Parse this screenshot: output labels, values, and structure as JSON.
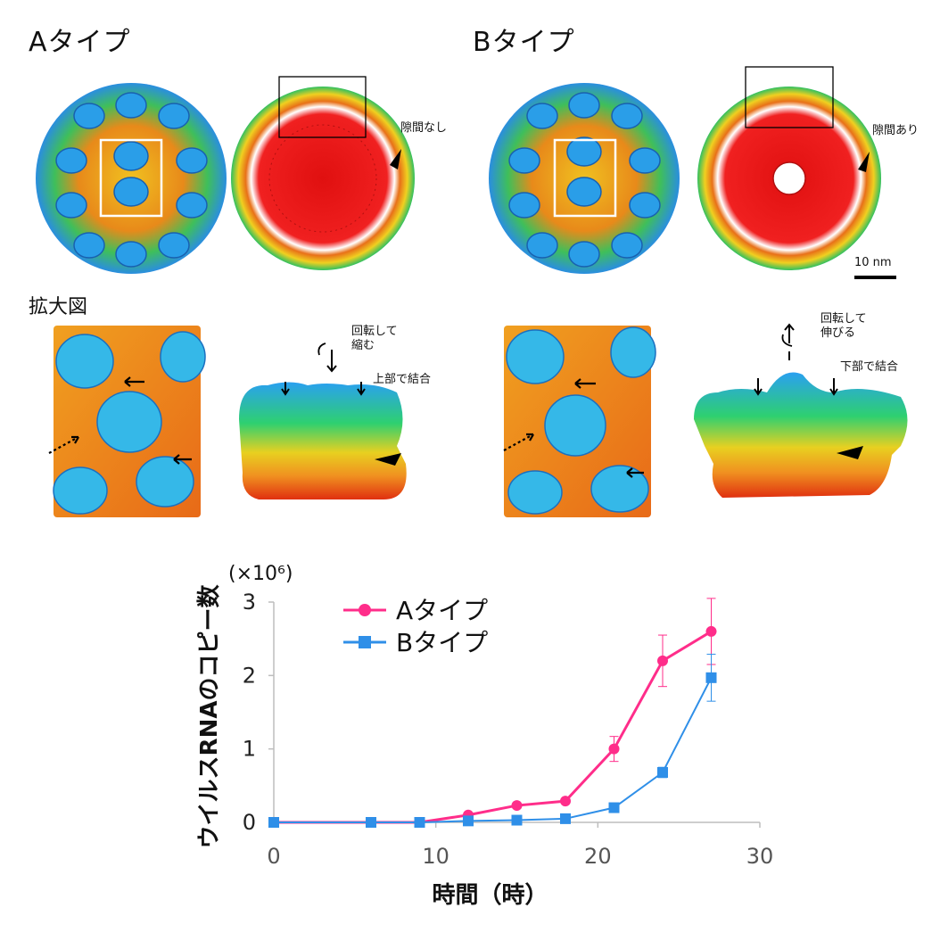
{
  "panels": {
    "a_title": "Aタイプ",
    "b_title": "Bタイプ",
    "a_gap_note": "隙間なし",
    "b_gap_note": "隙間あり",
    "scale_label": "10 nm",
    "zoom_label": "拡大図",
    "a_rotate_note": "回転して\n縮む",
    "b_rotate_note": "回転して\n伸びる",
    "a_bind_note": "上部で結合",
    "b_bind_note": "下部で結合"
  },
  "chart_data": {
    "type": "line",
    "title": "",
    "xlabel": "時間（時）",
    "ylabel": "ウイルスRNAのコピー数",
    "yunit": "(×10⁶)",
    "xlim": [
      0,
      30
    ],
    "ylim": [
      0,
      3
    ],
    "xticks": [
      0,
      10,
      20,
      30
    ],
    "yticks": [
      0,
      1,
      2,
      3
    ],
    "x": [
      0,
      6,
      9,
      12,
      15,
      18,
      21,
      24,
      27
    ],
    "series": [
      {
        "name": "Aタイプ",
        "color": "#ff2d8a",
        "marker": "circle",
        "values": [
          0.0,
          0.0,
          0.0,
          0.1,
          0.23,
          0.29,
          1.0,
          2.2,
          2.6
        ],
        "error": [
          0,
          0,
          0,
          0,
          0,
          0,
          0.17,
          0.35,
          0.45
        ]
      },
      {
        "name": "Bタイプ",
        "color": "#2f8fe8",
        "marker": "square",
        "values": [
          0.0,
          0.0,
          0.0,
          0.02,
          0.03,
          0.05,
          0.2,
          0.68,
          1.97
        ],
        "error": [
          0,
          0,
          0,
          0,
          0,
          0,
          0,
          0.07,
          0.32
        ]
      }
    ],
    "legend": "top-left",
    "grid": false
  }
}
